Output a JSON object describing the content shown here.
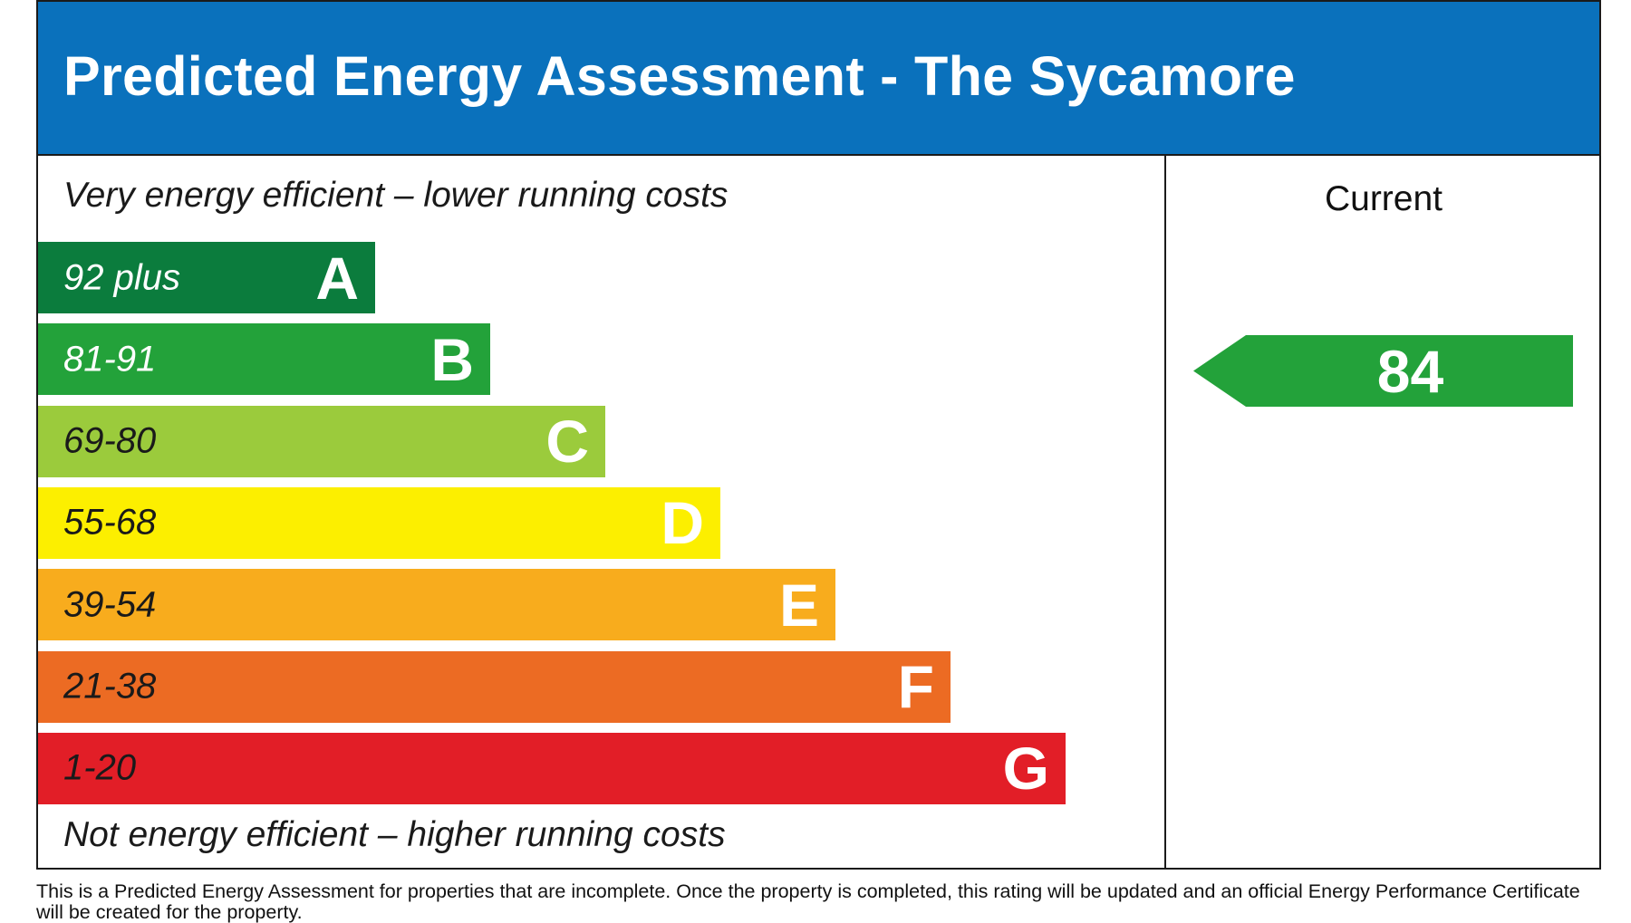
{
  "title": "Predicted Energy Assessment - The Sycamore",
  "caption_top": "Very energy efficient – lower running costs",
  "caption_bottom": "Not energy efficient – higher running costs",
  "current_label": "Current",
  "footnote": "This is a Predicted Energy Assessment for properties that are incomplete. Once the property is completed, this rating will be updated and an official Energy Performance Certificate will be created for the property.",
  "colors": {
    "header": "#0a71bc",
    "current_arrow": "#23a23a"
  },
  "chart_data": {
    "type": "bar",
    "categories": [
      "A",
      "B",
      "C",
      "D",
      "E",
      "F",
      "G"
    ],
    "ranges": [
      "92 plus",
      "81-91",
      "69-80",
      "55-68",
      "39-54",
      "21-38",
      "1-20"
    ],
    "colors": [
      "#0b7c3d",
      "#23a23a",
      "#9bcb3c",
      "#fcef00",
      "#f8ac1d",
      "#ec6b23",
      "#e21e27"
    ],
    "range_text_colors": [
      "#ffffff",
      "#ffffff",
      "#1a1a1a",
      "#1a1a1a",
      "#1a1a1a",
      "#1a1a1a",
      "#1a1a1a"
    ],
    "current": {
      "value": 84,
      "band": "B"
    }
  }
}
